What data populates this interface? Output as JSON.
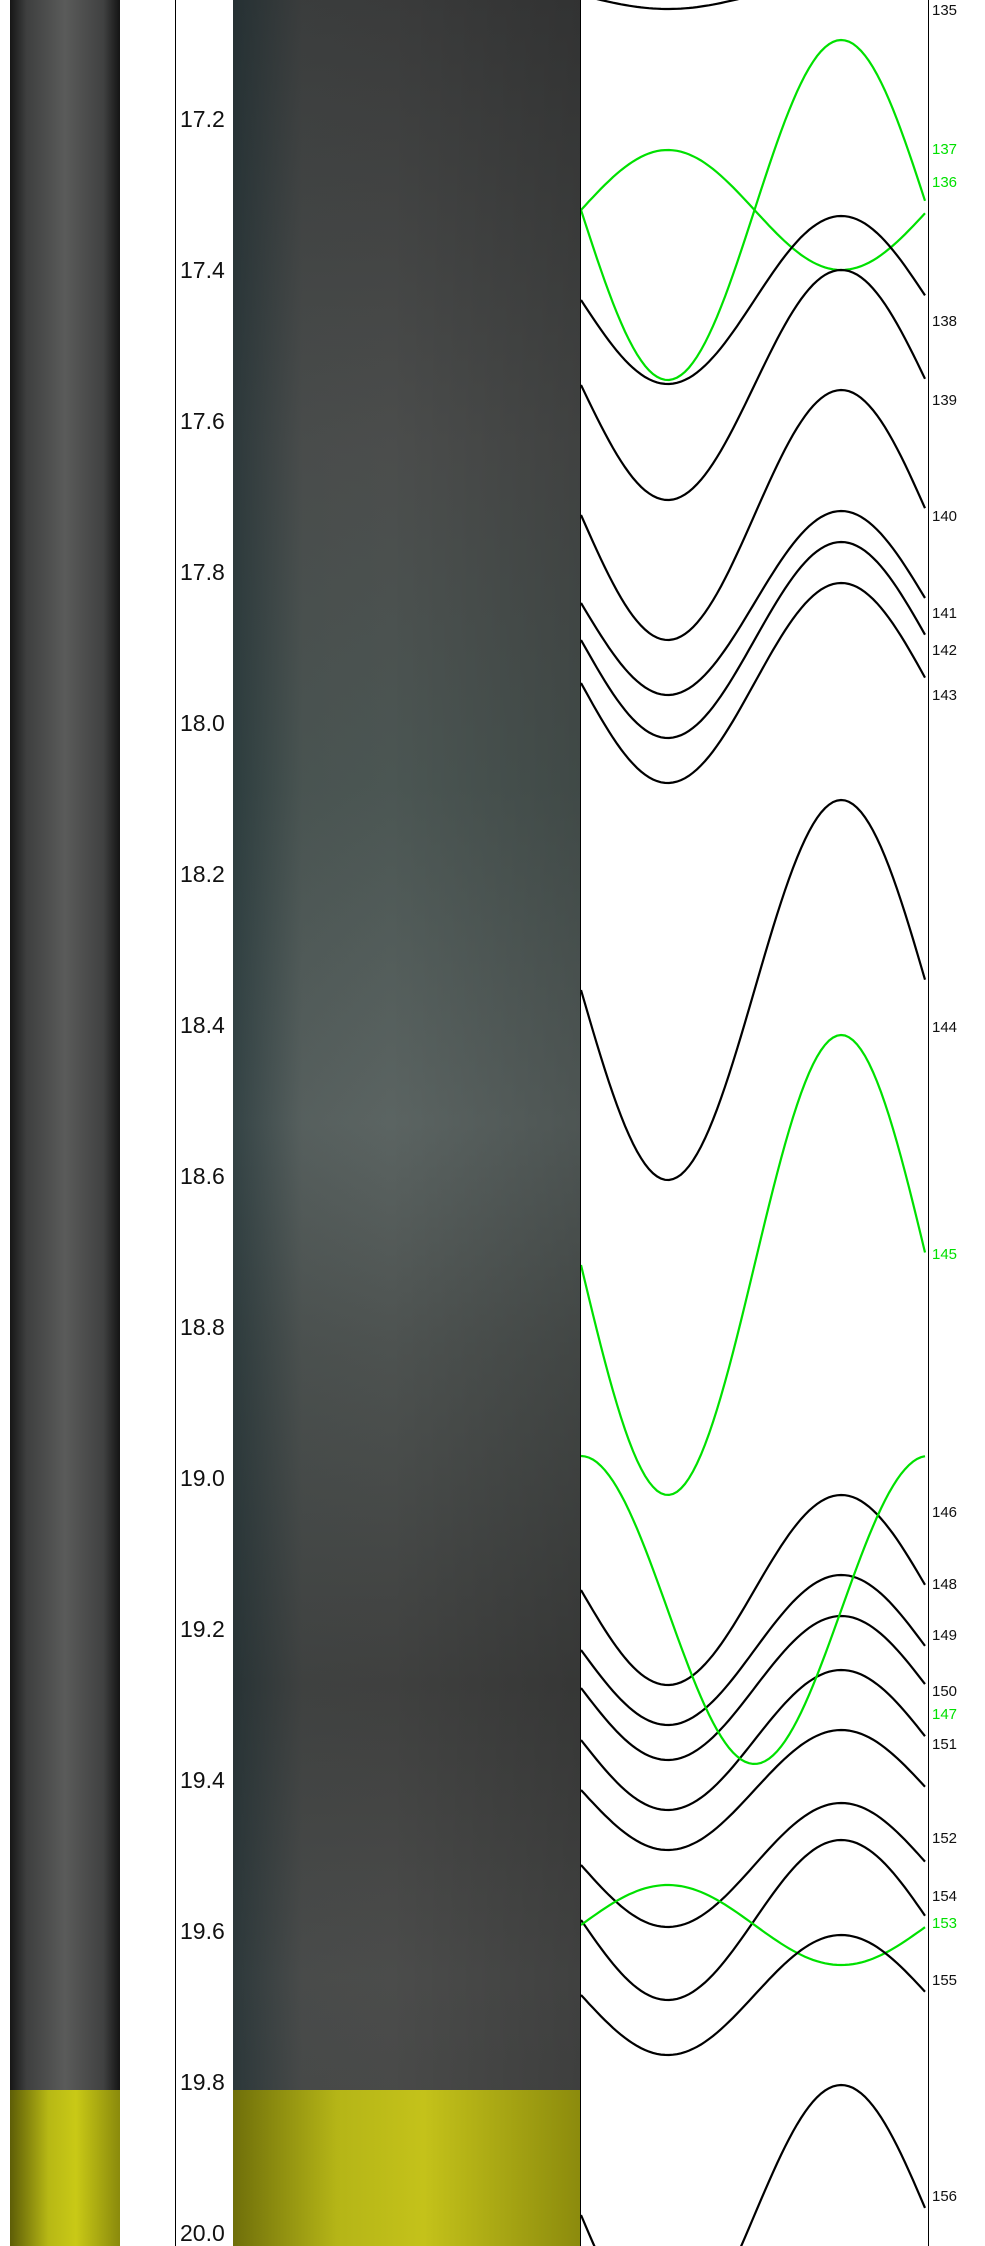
{
  "depth_track": {
    "labels": [
      "17.2",
      "17.4",
      "17.6",
      "17.8",
      "18.0",
      "18.2",
      "18.4",
      "18.6",
      "18.8",
      "19.0",
      "19.2",
      "19.4",
      "19.6",
      "19.8",
      "20.0"
    ]
  },
  "colors": {
    "structure_black": "#000000",
    "structure_green": "#00e000",
    "core_highlight": "#c8c81a"
  },
  "events": [
    {
      "label": "135",
      "color": "black"
    },
    {
      "label": "137",
      "color": "green"
    },
    {
      "label": "136",
      "color": "green"
    },
    {
      "label": "138",
      "color": "black"
    },
    {
      "label": "139",
      "color": "black"
    },
    {
      "label": "140",
      "color": "black"
    },
    {
      "label": "141",
      "color": "black"
    },
    {
      "label": "142",
      "color": "black"
    },
    {
      "label": "143",
      "color": "black"
    },
    {
      "label": "144",
      "color": "black"
    },
    {
      "label": "145",
      "color": "green"
    },
    {
      "label": "146",
      "color": "black"
    },
    {
      "label": "148",
      "color": "black"
    },
    {
      "label": "149",
      "color": "black"
    },
    {
      "label": "150",
      "color": "black"
    },
    {
      "label": "147",
      "color": "green"
    },
    {
      "label": "151",
      "color": "black"
    },
    {
      "label": "152",
      "color": "black"
    },
    {
      "label": "154",
      "color": "black"
    },
    {
      "label": "153",
      "color": "green"
    },
    {
      "label": "155",
      "color": "black"
    },
    {
      "label": "156",
      "color": "black"
    }
  ]
}
